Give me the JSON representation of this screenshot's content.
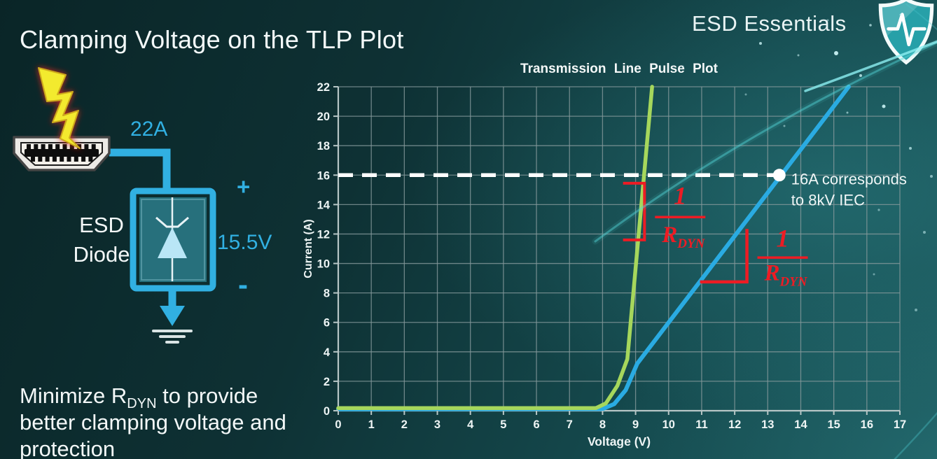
{
  "slide": {
    "title": "Clamping Voltage on the TLP Plot",
    "brand": {
      "name": "ESD Essentials",
      "icon": "shield-pulse-icon"
    },
    "note": {
      "prefix": "Minimize R",
      "subscript": "DYN",
      "suffix": " to provide better clamping voltage and protection"
    }
  },
  "diagram": {
    "surge_label": "22A",
    "plus_label": "+",
    "voltage_label": "15.5V",
    "minus_label": "-",
    "component_label_line1": "ESD",
    "component_label_line2": "Diode",
    "accent_color": "#31b0e2",
    "icons": [
      "lightning-bolt-icon",
      "hdmi-connector-icon",
      "tvs-diode-symbol",
      "ground-symbol"
    ]
  },
  "chart_data": {
    "type": "line",
    "title": "Transmission Line Pulse Plot",
    "xlabel": "Voltage (V)",
    "ylabel": "Current (A)",
    "xlim": [
      0,
      17
    ],
    "ylim": [
      0,
      22
    ],
    "xtick_step": 1,
    "ytick_step": 2,
    "grid": true,
    "legend": "none",
    "series": [
      {
        "id": "blue-curve",
        "color": "#2aabe2",
        "width": 6,
        "points": [
          [
            0,
            0.1
          ],
          [
            8.0,
            0.12
          ],
          [
            8.35,
            0.45
          ],
          [
            8.7,
            1.4
          ],
          [
            9.05,
            3.2
          ],
          [
            15.45,
            22
          ]
        ]
      },
      {
        "id": "green-curve",
        "color": "#a6d75c",
        "width": 5.5,
        "points": [
          [
            0,
            0.18
          ],
          [
            7.8,
            0.18
          ],
          [
            8.1,
            0.5
          ],
          [
            8.45,
            1.7
          ],
          [
            8.75,
            3.5
          ],
          [
            9.5,
            22
          ]
        ]
      }
    ],
    "reference_line": {
      "y": 16,
      "x_start": 0,
      "x_end": 13.35,
      "color": "#ffffff",
      "style": "dashed"
    },
    "marker": {
      "x": 13.35,
      "y": 16,
      "color": "#ffffff",
      "label_line1": "16A corresponds",
      "label_line2": "to 8kV IEC"
    },
    "rdyn_annotations": {
      "color": "#ed1c24",
      "numerator": "1",
      "denominator": "R",
      "denominator_sub": "DYN",
      "bracket": {
        "x": 9.27,
        "y_top": 15.45,
        "y_bottom": 11.6,
        "tick_len": 0.65
      },
      "legs": {
        "x1": 10.95,
        "y1": 8.75,
        "x2": 12.37,
        "y2": 12.35
      },
      "fractions": [
        {
          "cx": 10.35,
          "y_num": 14.05,
          "y_bar": 13.15,
          "y_den": 11.45
        },
        {
          "cx": 13.45,
          "y_num": 11.15,
          "y_bar": 10.4,
          "y_den": 8.85
        }
      ]
    },
    "colors": {
      "grid": "#85999b",
      "axis": "#b7c6c6",
      "tick_label": "#eef5f5"
    }
  }
}
